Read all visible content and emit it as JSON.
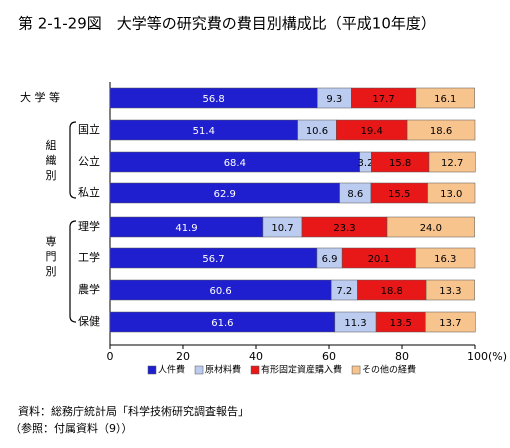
{
  "chart_data": {
    "type": "stacked-bar-horizontal",
    "title": "第 2-1-29図　大学等の研究費の費目別構成比（平成10年度）",
    "categories": [
      "大 学 等",
      "国立",
      "公立",
      "私立",
      "理学",
      "工学",
      "農学",
      "保健"
    ],
    "groups": [
      {
        "label": "組織別"
      },
      {
        "label": "専門別"
      }
    ],
    "series": [
      {
        "name": "人件費",
        "color": "#1f1fd0",
        "values": [
          56.8,
          51.4,
          68.4,
          62.9,
          41.9,
          56.7,
          60.6,
          61.6
        ],
        "value_labels": [
          "56.8",
          "51.4",
          "68.4",
          "62.9",
          "41.9",
          "56.7",
          "60.6",
          "61.6"
        ]
      },
      {
        "name": "原材料費",
        "color": "#bccbf0",
        "values": [
          9.3,
          10.6,
          3.2,
          8.6,
          10.7,
          6.9,
          7.2,
          11.3
        ],
        "value_labels": [
          "9.3",
          "10.6",
          "3.2",
          "8.6",
          "10.7",
          "6.9",
          "7.2",
          "11.3"
        ]
      },
      {
        "name": "有形固定資産購入費",
        "color": "#e81818",
        "values": [
          17.7,
          19.4,
          15.8,
          15.5,
          23.3,
          20.1,
          18.8,
          13.5
        ],
        "value_labels": [
          "17.7",
          "19.4",
          "15.8",
          "15.5",
          "23.3",
          "20.1",
          "18.8",
          "13.5"
        ]
      },
      {
        "name": "その他の経費",
        "color": "#f8c48e",
        "values": [
          16.1,
          18.6,
          12.7,
          13.0,
          24.0,
          16.3,
          13.3,
          13.7
        ],
        "value_labels": [
          "16.1",
          "18.6",
          "12.7",
          "13.0",
          "24.0",
          "16.3",
          "13.3",
          "13.7"
        ]
      }
    ],
    "xlim": [
      0,
      100
    ],
    "xticks": [
      0,
      20,
      40,
      60,
      80,
      {
        "value": 100,
        "label": "100(%)"
      }
    ],
    "source": [
      "資料：総務庁統計局「科学技術研究調査報告」",
      "（参照：付属資料（9））"
    ]
  }
}
